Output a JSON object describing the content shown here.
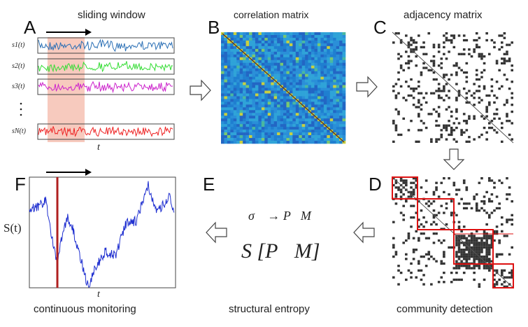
{
  "panels": {
    "A": {
      "letter": "A",
      "caption": "sliding window",
      "signals": [
        "s1(t)",
        "s2(t)",
        "s3(t)",
        "sN(t)"
      ],
      "x_axis": "t"
    },
    "B": {
      "letter": "B",
      "caption": "correlation matrix"
    },
    "C": {
      "letter": "C",
      "caption": "adjacency matrix"
    },
    "D": {
      "letter": "D",
      "caption": "community detection"
    },
    "E": {
      "letter": "E",
      "caption": "structural entropy",
      "formula_line1": "σ⃗ → P⃗M",
      "formula_line2": "S [P⃗M]"
    },
    "F": {
      "letter": "F",
      "caption": "continuous monitoring",
      "y_axis": "S(t)",
      "x_axis": "t"
    }
  },
  "colors": {
    "signal1": "#2a6fb5",
    "signal2": "#33dd33",
    "signal3": "#cc22cc",
    "signalN": "#ee2222",
    "window": "#f4b8a8",
    "entropy_line": "#1f2fd0",
    "marker": "#b02020",
    "community_box": "#dd1111"
  },
  "icons": [
    "arrow-right-icon",
    "arrow-down-icon",
    "arrow-left-icon",
    "time-arrow-icon"
  ]
}
